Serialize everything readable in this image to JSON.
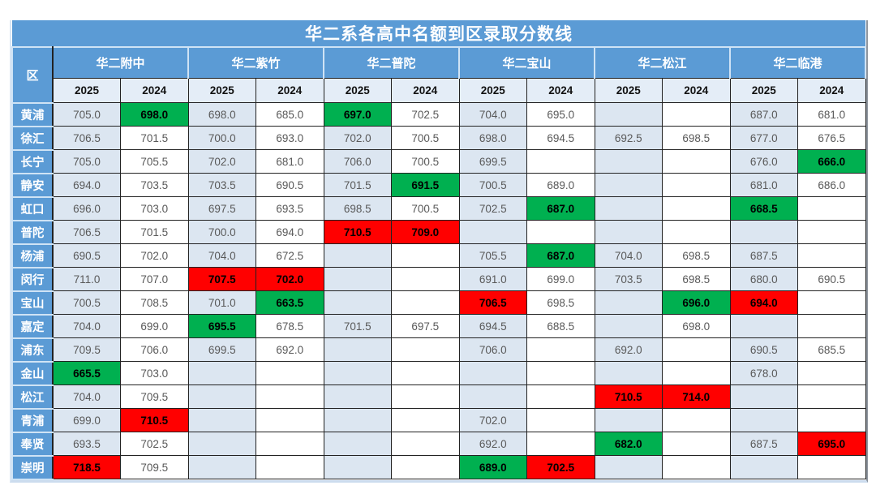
{
  "chart_data": {
    "type": "table",
    "title": "华二系各高中名额到区录取分数线",
    "corner_label": "区",
    "school_groups": [
      "华二附中",
      "华二紫竹",
      "华二普陀",
      "华二宝山",
      "华二松江",
      "华二临港"
    ],
    "year_columns": [
      "2025",
      "2024"
    ],
    "rows": [
      {
        "district": "黄浦",
        "cells": [
          "705.0",
          {
            "v": "698.0",
            "hl": "green"
          },
          "698.0",
          "685.0",
          {
            "v": "697.0",
            "hl": "green"
          },
          "702.5",
          "704.0",
          "695.0",
          "",
          "",
          "687.0",
          "681.0"
        ]
      },
      {
        "district": "徐汇",
        "cells": [
          "706.5",
          "701.5",
          "700.0",
          "693.0",
          "702.0",
          "700.5",
          "698.0",
          "694.5",
          "692.5",
          "698.5",
          "677.0",
          "676.5"
        ]
      },
      {
        "district": "长宁",
        "cells": [
          "705.0",
          "705.5",
          "702.0",
          "681.0",
          "706.0",
          "700.5",
          "699.5",
          "",
          "",
          "",
          "676.0",
          {
            "v": "666.0",
            "hl": "green"
          }
        ]
      },
      {
        "district": "静安",
        "cells": [
          "694.0",
          "703.5",
          "703.5",
          "690.5",
          "701.5",
          {
            "v": "691.5",
            "hl": "green"
          },
          "700.5",
          "689.0",
          "",
          "",
          "681.0",
          "686.0"
        ]
      },
      {
        "district": "虹口",
        "cells": [
          "696.0",
          "703.0",
          "697.5",
          "693.5",
          "698.5",
          "700.5",
          "702.5",
          {
            "v": "687.0",
            "hl": "green"
          },
          "",
          "",
          {
            "v": "668.5",
            "hl": "green"
          },
          ""
        ]
      },
      {
        "district": "普陀",
        "cells": [
          "706.5",
          "701.5",
          "700.0",
          "694.0",
          {
            "v": "710.5",
            "hl": "red"
          },
          {
            "v": "709.0",
            "hl": "red"
          },
          "",
          "",
          "",
          "",
          "",
          ""
        ]
      },
      {
        "district": "杨浦",
        "cells": [
          "690.5",
          "702.0",
          "704.0",
          "672.5",
          "",
          "",
          "705.5",
          {
            "v": "687.0",
            "hl": "green"
          },
          "704.0",
          "698.5",
          "687.5",
          ""
        ]
      },
      {
        "district": "闵行",
        "cells": [
          "711.0",
          "707.0",
          {
            "v": "707.5",
            "hl": "red"
          },
          {
            "v": "702.0",
            "hl": "red"
          },
          "",
          "",
          "691.0",
          "699.0",
          "703.5",
          "698.5",
          "680.0",
          "690.5"
        ]
      },
      {
        "district": "宝山",
        "cells": [
          "700.5",
          "708.5",
          "701.0",
          {
            "v": "663.5",
            "hl": "green"
          },
          "",
          "",
          {
            "v": "706.5",
            "hl": "red"
          },
          "698.5",
          "",
          {
            "v": "696.0",
            "hl": "green"
          },
          {
            "v": "694.0",
            "hl": "red"
          },
          ""
        ]
      },
      {
        "district": "嘉定",
        "cells": [
          "704.0",
          "699.0",
          {
            "v": "695.5",
            "hl": "green"
          },
          "678.5",
          "701.5",
          "697.5",
          "694.5",
          "688.5",
          "",
          "698.0",
          "",
          ""
        ]
      },
      {
        "district": "浦东",
        "cells": [
          "709.5",
          "706.0",
          "699.5",
          "692.0",
          "",
          "",
          "706.0",
          "",
          "692.0",
          "",
          "690.5",
          "685.5"
        ]
      },
      {
        "district": "金山",
        "cells": [
          {
            "v": "665.5",
            "hl": "green"
          },
          "703.0",
          "",
          "",
          "",
          "",
          "",
          "",
          "",
          "",
          "678.0",
          ""
        ]
      },
      {
        "district": "松江",
        "cells": [
          "704.0",
          "709.5",
          "",
          "",
          "",
          "",
          "",
          "",
          {
            "v": "710.5",
            "hl": "red"
          },
          {
            "v": "714.0",
            "hl": "red"
          },
          "",
          ""
        ]
      },
      {
        "district": "青浦",
        "cells": [
          "699.0",
          {
            "v": "710.5",
            "hl": "red"
          },
          "",
          "",
          "",
          "",
          "702.0",
          "",
          "",
          "",
          "",
          ""
        ]
      },
      {
        "district": "奉贤",
        "cells": [
          "693.5",
          "702.5",
          "",
          "",
          "",
          "",
          "692.0",
          "",
          {
            "v": "682.0",
            "hl": "green"
          },
          "",
          "687.5",
          {
            "v": "695.0",
            "hl": "red"
          }
        ]
      },
      {
        "district": "崇明",
        "cells": [
          {
            "v": "718.5",
            "hl": "red"
          },
          "709.5",
          "",
          "",
          "",
          "",
          {
            "v": "689.0",
            "hl": "green"
          },
          {
            "v": "702.5",
            "hl": "red"
          },
          "",
          "",
          "",
          ""
        ]
      }
    ]
  },
  "colors": {
    "header_blue": "#5B9BD5",
    "subheader_bg": "#e4edf7",
    "light_column_bg": "#dce6f1",
    "green_highlight": "#00B050",
    "red_highlight": "#FF0000",
    "score_text": "#595959",
    "highlight_text": "#000000"
  }
}
